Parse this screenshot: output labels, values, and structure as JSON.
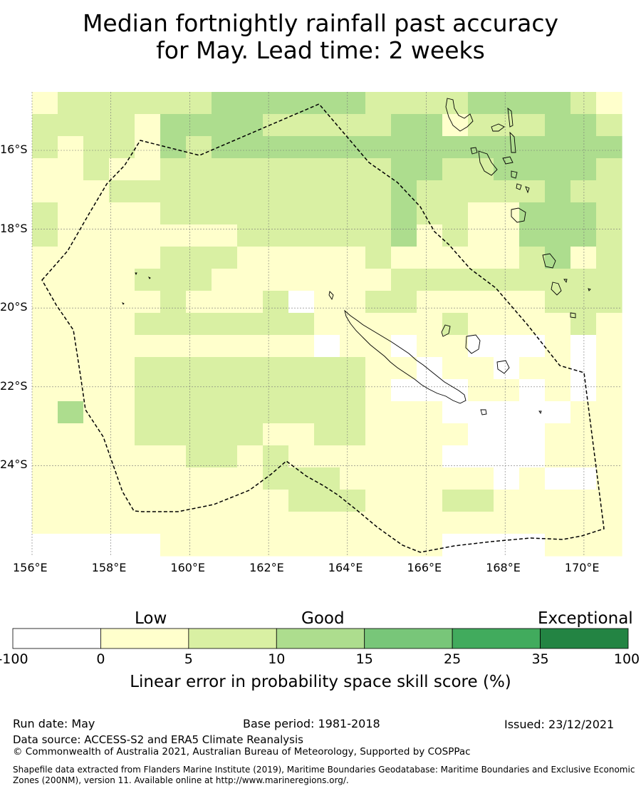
{
  "title": {
    "line1": "Median fortnightly rainfall past accuracy",
    "line2": "for May. Lead time: 2 weeks"
  },
  "map": {
    "lon_range": [
      156.0,
      171.0
    ],
    "lat_range": [
      -26.5,
      -14.7
    ],
    "grid": true,
    "x_ticks": [
      "156°E",
      "158°E",
      "160°E",
      "162°E",
      "164°E",
      "166°E",
      "168°E",
      "170°E"
    ],
    "y_ticks": [
      "16°S",
      "18°S",
      "20°S",
      "22°S",
      "24°S"
    ],
    "boundary_color": "#000000",
    "land_outline_color": "#000000"
  },
  "legend": {
    "categories": [
      "Low",
      "Good",
      "Exceptional"
    ],
    "ticks": [
      "-100",
      "0",
      "5",
      "10",
      "15",
      "25",
      "35",
      "100"
    ],
    "colors": [
      "#ffffff",
      "#ffffcc",
      "#d9f0a3",
      "#addd8e",
      "#78c679",
      "#41ab5d",
      "#238443"
    ],
    "label": "Linear error in probability space skill score (%)"
  },
  "footer": {
    "run_date": "Run date: May",
    "base_period": "Base period: 1981-2018",
    "issued": "Issued: 23/12/2021",
    "data_source": "Data source: ACCESS-S2 and ERA5 Climate Reanalysis",
    "copyright": "© Commonwealth of Australia 2021, Australian Bureau of Meteorology, Supported by COSPPac",
    "shapefile": "Shapefile data extracted from Flanders Marine Institute (2019), Maritime Boundaries Geodatabase: Maritime Boundaries and Exclusive Economic Zones (200NM), version 11. Available online at http://www.marineregions.org/."
  }
}
